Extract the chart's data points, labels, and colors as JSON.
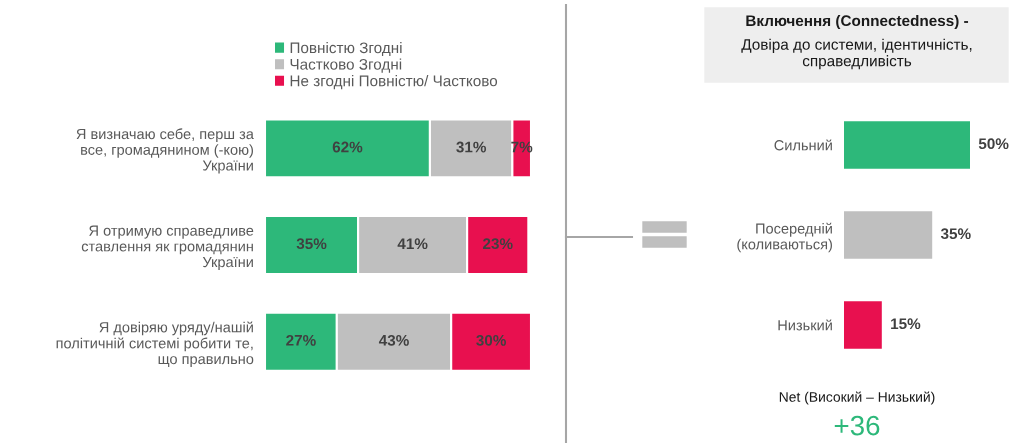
{
  "chart_data": [
    {
      "type": "bar",
      "orientation": "horizontal",
      "stacked": true,
      "legend": "top",
      "tick_labels": "y",
      "grid": false,
      "categories": [
        "Я визначаю себе, перш за\nвсе, громадянином (-кою)\nУкраїни",
        "Я отримую справедливе\nставлення як громадянин\nУкраїни",
        "Я довіряю уряду/нашій\nполітичній системі робити те,\nщо правильно"
      ],
      "series": [
        {
          "name": "Повністю Згодні",
          "color": "#2db87a",
          "values": [
            62,
            35,
            27
          ],
          "value_labels": [
            "62%",
            "35%",
            "27%"
          ]
        },
        {
          "name": "Частково Згодні",
          "color": "#bfbfbf",
          "values": [
            31,
            41,
            43
          ],
          "value_labels": [
            "31%",
            "41%",
            "43%"
          ]
        },
        {
          "name": "Не згодні Повністю/ Частково",
          "color": "#e8104f",
          "values": [
            7,
            23,
            30
          ],
          "value_labels": [
            "7%",
            "23%",
            "30%"
          ]
        }
      ]
    },
    {
      "type": "bar",
      "orientation": "horizontal",
      "tick_labels": "y",
      "grid": false,
      "title": "Включення (Connectedness) -",
      "subtitle": "Довіра до системи, ідентичність, справедливість",
      "categories": [
        "Сильний",
        "Посередній\n(коливаються)",
        "Низький"
      ],
      "values": [
        50,
        35,
        15
      ],
      "colors": [
        "#2db87a",
        "#bfbfbf",
        "#e8104f"
      ],
      "value_labels": [
        "50%",
        "35%",
        "15%"
      ],
      "annotations": [
        "Net (Високий – Низький)",
        "+36"
      ]
    }
  ]
}
